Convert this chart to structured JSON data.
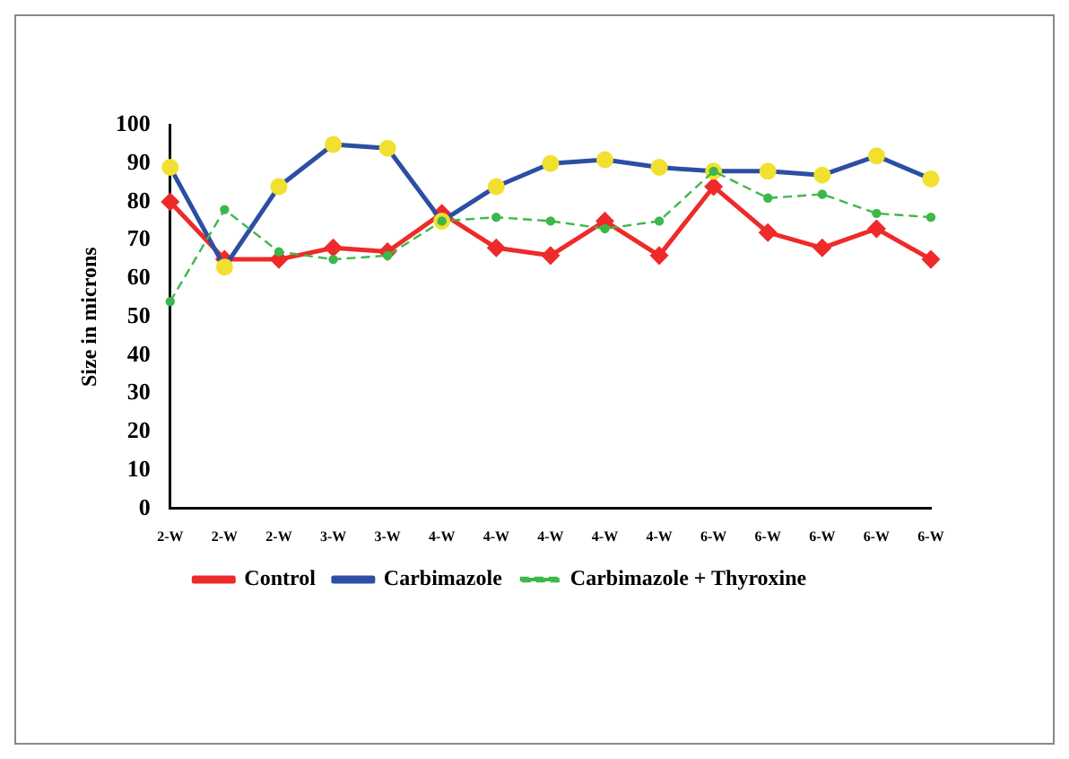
{
  "chart_data": {
    "type": "line",
    "ylabel": "Size in microns",
    "categories": [
      "2-W",
      "2-W",
      "2-W",
      "3-W",
      "3-W",
      "4-W",
      "4-W",
      "4-W",
      "4-W",
      "4-W",
      "6-W",
      "6-W",
      "6-W",
      "6-W",
      "6-W"
    ],
    "series": [
      {
        "name": "Control",
        "color": "#ee2a2a",
        "values": [
          80,
          65,
          65,
          68,
          67,
          77,
          68,
          66,
          75,
          66,
          84,
          72,
          68,
          73,
          65
        ],
        "marker": "diamond",
        "line_style": "solid"
      },
      {
        "name": "Carbimazole",
        "color": "#2c4fa3",
        "colors": [
          "#f2e030",
          "#f2e030",
          "#f2e030",
          "#f2e030",
          "#f2e030",
          "#f2e030",
          "#f2e030",
          "#f2e030",
          "#f2e030",
          "#f2e030",
          "#f2e030",
          "#f2e030",
          "#f2e030",
          "#f2e030",
          "#f2e030"
        ],
        "values": [
          89,
          63,
          84,
          95,
          94,
          75,
          84,
          90,
          91,
          89,
          88,
          88,
          87,
          92,
          86
        ],
        "marker": "circle",
        "line_style": "solid"
      },
      {
        "name": "Carbimazole + Thyroxine",
        "color": "#3cb84a",
        "values": [
          54,
          78,
          67,
          65,
          66,
          75,
          76,
          75,
          73,
          75,
          88,
          81,
          82,
          77,
          76
        ],
        "marker": "circle",
        "line_style": "dashed"
      }
    ],
    "ylim": [
      0,
      100
    ],
    "yticks": [
      0,
      10,
      20,
      30,
      40,
      50,
      60,
      70,
      80,
      90,
      100
    ],
    "grid": false,
    "legend": "bottom"
  }
}
